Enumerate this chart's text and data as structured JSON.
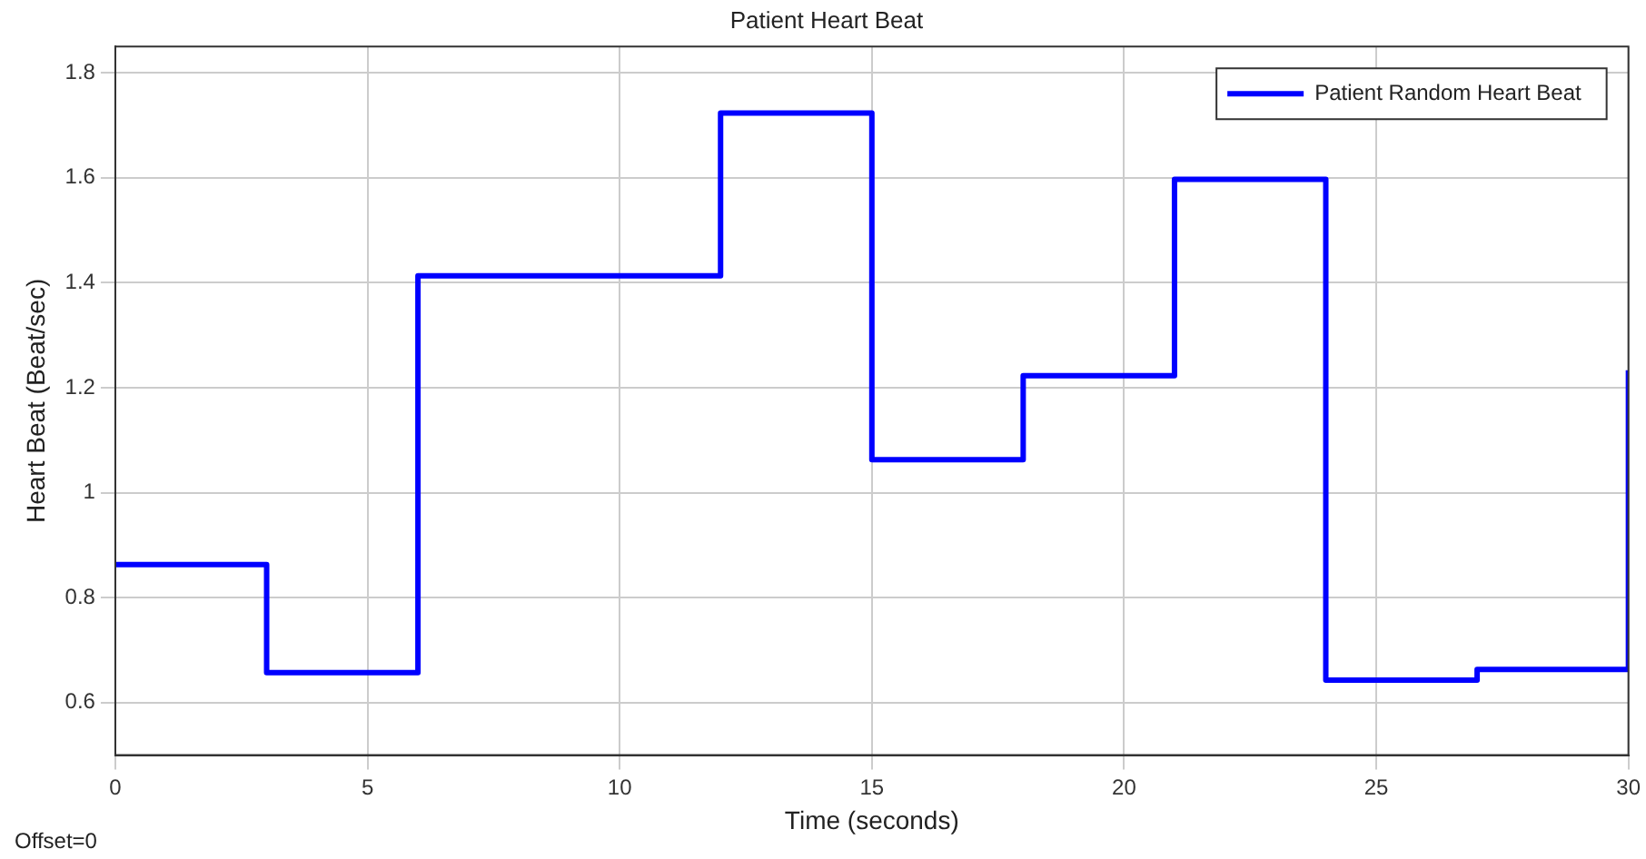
{
  "chart_data": {
    "type": "step",
    "title": "Patient Heart Beat",
    "xlabel": "Time (seconds)",
    "ylabel": "Heart Beat (Beat/sec)",
    "annotations": [
      "Offset=0"
    ],
    "x": [
      0,
      3,
      6,
      12,
      15,
      18,
      21,
      24,
      27,
      30
    ],
    "series": [
      {
        "name": "Patient Random Heart Beat",
        "color": "#0000ff",
        "values": [
          0.863,
          0.657,
          1.413,
          1.723,
          1.063,
          1.223,
          1.597,
          0.643,
          0.663,
          1.233
        ]
      }
    ],
    "xlim": [
      0,
      30
    ],
    "xticks": [
      0,
      5,
      10,
      15,
      20,
      25,
      30
    ],
    "ylim": [
      0.5,
      1.85
    ],
    "yticks": [
      0.6,
      0.8,
      1,
      1.2,
      1.4,
      1.6,
      1.8
    ],
    "grid": true,
    "legend": "top right",
    "marker": "none",
    "line_style": "solid"
  }
}
